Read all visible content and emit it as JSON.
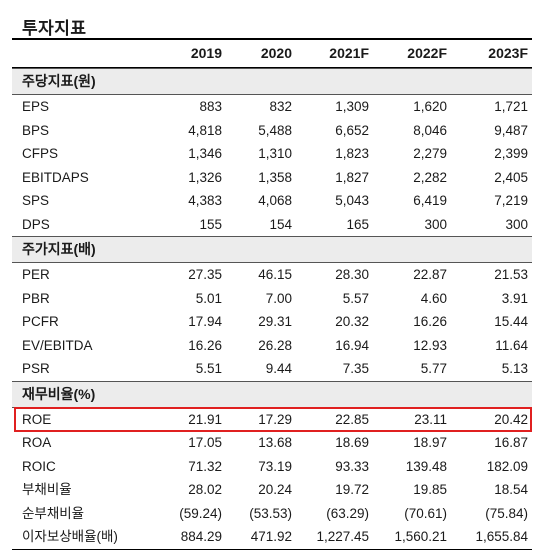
{
  "title": "투자지표",
  "columns": [
    "2019",
    "2020",
    "2021F",
    "2022F",
    "2023F"
  ],
  "sections": [
    {
      "name": "주당지표(원)",
      "rows": [
        {
          "label": "EPS",
          "values": [
            "883",
            "832",
            "1,309",
            "1,620",
            "1,721"
          ]
        },
        {
          "label": "BPS",
          "values": [
            "4,818",
            "5,488",
            "6,652",
            "8,046",
            "9,487"
          ]
        },
        {
          "label": "CFPS",
          "values": [
            "1,346",
            "1,310",
            "1,823",
            "2,279",
            "2,399"
          ]
        },
        {
          "label": "EBITDAPS",
          "values": [
            "1,326",
            "1,358",
            "1,827",
            "2,282",
            "2,405"
          ]
        },
        {
          "label": "SPS",
          "values": [
            "4,383",
            "4,068",
            "5,043",
            "6,419",
            "7,219"
          ]
        },
        {
          "label": "DPS",
          "values": [
            "155",
            "154",
            "165",
            "300",
            "300"
          ]
        }
      ]
    },
    {
      "name": "주가지표(배)",
      "rows": [
        {
          "label": "PER",
          "values": [
            "27.35",
            "46.15",
            "28.30",
            "22.87",
            "21.53"
          ]
        },
        {
          "label": "PBR",
          "values": [
            "5.01",
            "7.00",
            "5.57",
            "4.60",
            "3.91"
          ]
        },
        {
          "label": "PCFR",
          "values": [
            "17.94",
            "29.31",
            "20.32",
            "16.26",
            "15.44"
          ]
        },
        {
          "label": "EV/EBITDA",
          "values": [
            "16.26",
            "26.28",
            "16.94",
            "12.93",
            "11.64"
          ]
        },
        {
          "label": "PSR",
          "values": [
            "5.51",
            "9.44",
            "7.35",
            "5.77",
            "5.13"
          ]
        }
      ]
    },
    {
      "name": "재무비율(%)",
      "rows": [
        {
          "label": "ROE",
          "values": [
            "21.91",
            "17.29",
            "22.85",
            "23.11",
            "20.42"
          ],
          "highlighted": true
        },
        {
          "label": "ROA",
          "values": [
            "17.05",
            "13.68",
            "18.69",
            "18.97",
            "16.87"
          ]
        },
        {
          "label": "ROIC",
          "values": [
            "71.32",
            "73.19",
            "93.33",
            "139.48",
            "182.09"
          ]
        },
        {
          "label": "부채비율",
          "values": [
            "28.02",
            "20.24",
            "19.72",
            "19.85",
            "18.54"
          ]
        },
        {
          "label": "순부채비율",
          "values": [
            "(59.24)",
            "(53.53)",
            "(63.29)",
            "(70.61)",
            "(75.84)"
          ]
        },
        {
          "label": "이자보상배율(배)",
          "values": [
            "884.29",
            "471.92",
            "1,227.45",
            "1,560.21",
            "1,655.84"
          ]
        }
      ]
    }
  ],
  "colors": {
    "highlight_border": "#e02020",
    "section_background": "#ececec"
  }
}
